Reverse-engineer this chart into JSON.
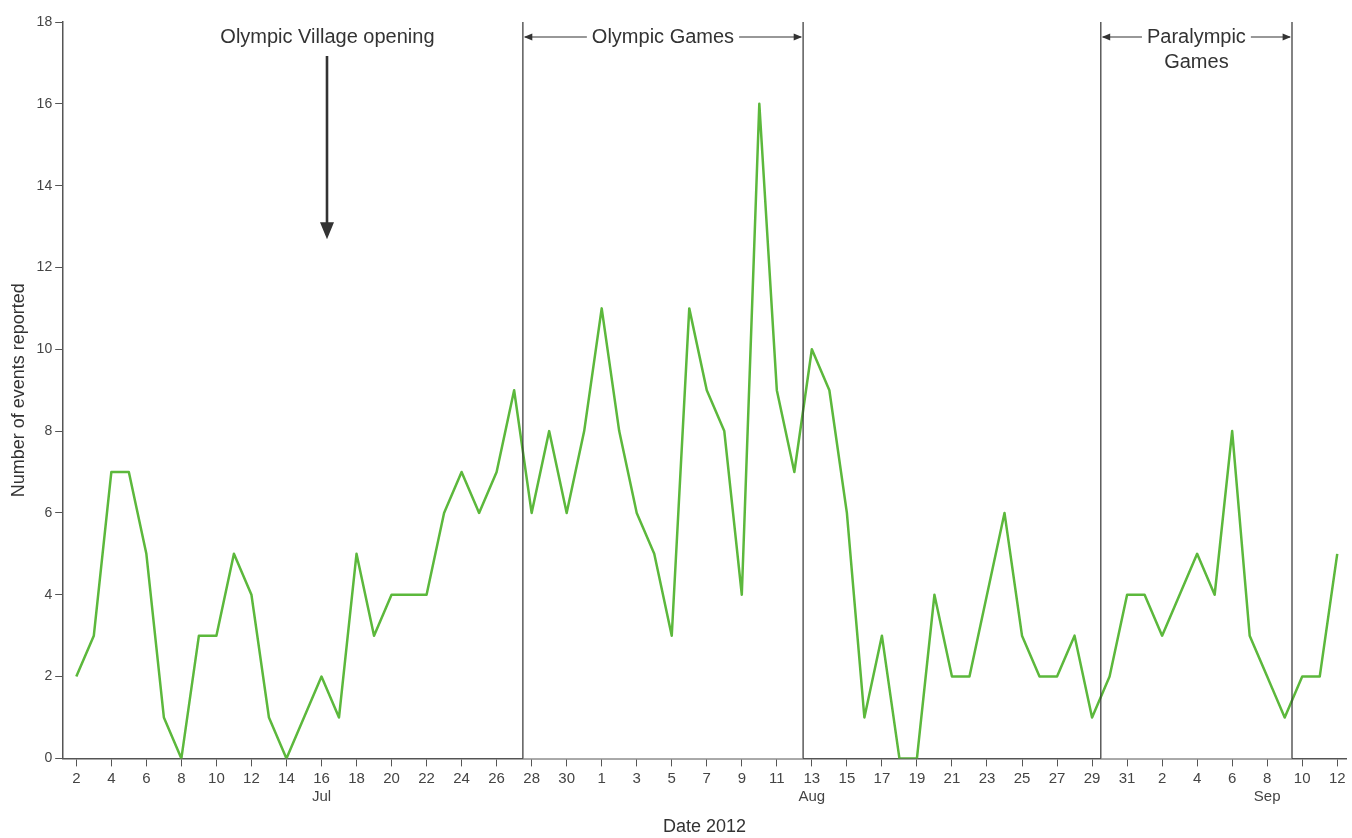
{
  "chart_data": {
    "type": "line",
    "xlabel": "Date 2012",
    "ylabel": "Number of events reported",
    "x": [
      "2012-07-02",
      "2012-07-03",
      "2012-07-04",
      "2012-07-05",
      "2012-07-06",
      "2012-07-07",
      "2012-07-08",
      "2012-07-09",
      "2012-07-10",
      "2012-07-11",
      "2012-07-12",
      "2012-07-13",
      "2012-07-14",
      "2012-07-15",
      "2012-07-16",
      "2012-07-17",
      "2012-07-18",
      "2012-07-19",
      "2012-07-20",
      "2012-07-21",
      "2012-07-22",
      "2012-07-23",
      "2012-07-24",
      "2012-07-25",
      "2012-07-26",
      "2012-07-27",
      "2012-07-28",
      "2012-07-29",
      "2012-07-30",
      "2012-07-31",
      "2012-08-01",
      "2012-08-02",
      "2012-08-03",
      "2012-08-04",
      "2012-08-05",
      "2012-08-06",
      "2012-08-07",
      "2012-08-08",
      "2012-08-09",
      "2012-08-10",
      "2012-08-11",
      "2012-08-12",
      "2012-08-13",
      "2012-08-14",
      "2012-08-15",
      "2012-08-16",
      "2012-08-17",
      "2012-08-18",
      "2012-08-19",
      "2012-08-20",
      "2012-08-21",
      "2012-08-22",
      "2012-08-23",
      "2012-08-24",
      "2012-08-25",
      "2012-08-26",
      "2012-08-27",
      "2012-08-28",
      "2012-08-29",
      "2012-08-30",
      "2012-08-31",
      "2012-09-01",
      "2012-09-02",
      "2012-09-03",
      "2012-09-04",
      "2012-09-05",
      "2012-09-06",
      "2012-09-07",
      "2012-09-08",
      "2012-09-09",
      "2012-09-10",
      "2012-09-11",
      "2012-09-12"
    ],
    "series": [
      {
        "color": "#5cb83c",
        "values": [
          2,
          3,
          7,
          7,
          5,
          1,
          0,
          3,
          3,
          5,
          4,
          1,
          0,
          1,
          2,
          1,
          5,
          3,
          4,
          4,
          4,
          6,
          7,
          6,
          7,
          9,
          6,
          8,
          6,
          8,
          11,
          8,
          6,
          5,
          3,
          11,
          9,
          8,
          4,
          16,
          9,
          7,
          10,
          9,
          6,
          1,
          3,
          0,
          0,
          4,
          2,
          2,
          4,
          6,
          3,
          2,
          2,
          3,
          1,
          2,
          4,
          4,
          3,
          4,
          5,
          4,
          8,
          3,
          2,
          1,
          2,
          2,
          5
        ]
      }
    ],
    "xlim": [
      "2012-07-01T06:00",
      "2012-09-12T12:00"
    ],
    "xticks": [
      {
        "value": "2012-07-02",
        "label": "2"
      },
      {
        "value": "2012-07-04",
        "label": "4"
      },
      {
        "value": "2012-07-06",
        "label": "6"
      },
      {
        "value": "2012-07-08",
        "label": "8"
      },
      {
        "value": "2012-07-10",
        "label": "10"
      },
      {
        "value": "2012-07-12",
        "label": "12"
      },
      {
        "value": "2012-07-14",
        "label": "14"
      },
      {
        "value": "2012-07-16",
        "label": "16\nJul"
      },
      {
        "value": "2012-07-18",
        "label": "18"
      },
      {
        "value": "2012-07-20",
        "label": "20"
      },
      {
        "value": "2012-07-22",
        "label": "22"
      },
      {
        "value": "2012-07-24",
        "label": "24"
      },
      {
        "value": "2012-07-26",
        "label": "26"
      },
      {
        "value": "2012-07-28",
        "label": "28"
      },
      {
        "value": "2012-07-30",
        "label": "30"
      },
      {
        "value": "2012-08-01",
        "label": "1"
      },
      {
        "value": "2012-08-03",
        "label": "3"
      },
      {
        "value": "2012-08-05",
        "label": "5"
      },
      {
        "value": "2012-08-07",
        "label": "7"
      },
      {
        "value": "2012-08-09",
        "label": "9"
      },
      {
        "value": "2012-08-11",
        "label": "11"
      },
      {
        "value": "2012-08-13",
        "label": "13\nAug"
      },
      {
        "value": "2012-08-15",
        "label": "15"
      },
      {
        "value": "2012-08-17",
        "label": "17"
      },
      {
        "value": "2012-08-19",
        "label": "19"
      },
      {
        "value": "2012-08-21",
        "label": "21"
      },
      {
        "value": "2012-08-23",
        "label": "23"
      },
      {
        "value": "2012-08-25",
        "label": "25"
      },
      {
        "value": "2012-08-27",
        "label": "27"
      },
      {
        "value": "2012-08-29",
        "label": "29"
      },
      {
        "value": "2012-08-31",
        "label": "31"
      },
      {
        "value": "2012-09-02",
        "label": "2"
      },
      {
        "value": "2012-09-04",
        "label": "4"
      },
      {
        "value": "2012-09-06",
        "label": "6"
      },
      {
        "value": "2012-09-08",
        "label": "8\nSep"
      },
      {
        "value": "2012-09-10",
        "label": "10"
      },
      {
        "value": "2012-09-12",
        "label": "12"
      }
    ],
    "ylim": [
      0,
      18
    ],
    "yticks": [
      0,
      2,
      4,
      6,
      8,
      10,
      12,
      14,
      16,
      18
    ],
    "bands": [
      {
        "axis": "x",
        "from": "2012-07-27T12:00",
        "to": "2012-08-12T12:00",
        "label": "Olympic Games",
        "color": "#ffffff"
      },
      {
        "axis": "x",
        "from": "2012-08-29T12:00",
        "to": "2012-09-09T10:00",
        "label": "Paralympic Games",
        "color": "#ffffff"
      }
    ],
    "annotations": [
      "Olympic Village opening"
    ],
    "grid": false,
    "legend": false,
    "marker": "none",
    "line_style": "solid"
  }
}
